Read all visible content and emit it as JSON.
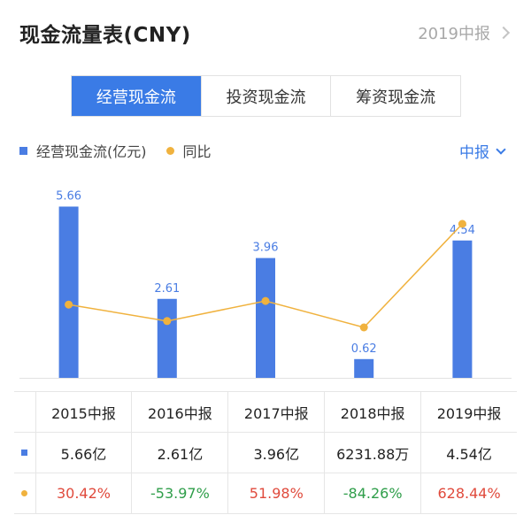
{
  "header": {
    "title": "现金流量表(CNY)",
    "period_link": "2019中报"
  },
  "tabs": [
    {
      "label": "经营现金流",
      "active": true
    },
    {
      "label": "投资现金流",
      "active": false
    },
    {
      "label": "筹资现金流",
      "active": false
    }
  ],
  "legend": {
    "bar_label": "经营现金流(亿元)",
    "line_label": "同比"
  },
  "period_select": {
    "value": "中报"
  },
  "colors": {
    "accent": "#3a7be6",
    "bar": "#4a7de3",
    "line": "#f0b23e",
    "positive": "#e04a3c",
    "negative": "#2f9e4a"
  },
  "chart_data": {
    "type": "bar",
    "categories": [
      "2015中报",
      "2016中报",
      "2017中报",
      "2018中报",
      "2019中报"
    ],
    "series": [
      {
        "name": "经营现金流(亿元)",
        "type": "bar",
        "values": [
          5.66,
          2.61,
          3.96,
          0.62,
          4.54
        ],
        "labels": [
          "5.66",
          "2.61",
          "3.96",
          "0.62",
          "4.54"
        ]
      },
      {
        "name": "同比",
        "type": "line",
        "values": [
          30.42,
          -53.97,
          51.98,
          -84.26,
          628.44
        ]
      }
    ],
    "legend": "top-left"
  },
  "table": {
    "headers": [
      "2015中报",
      "2016中报",
      "2017中报",
      "2018中报",
      "2019中报"
    ],
    "amounts": [
      "5.66亿",
      "2.61亿",
      "3.96亿",
      "6231.88万",
      "4.54亿"
    ],
    "growth": [
      "30.42%",
      "-53.97%",
      "51.98%",
      "-84.26%",
      "628.44%"
    ]
  }
}
